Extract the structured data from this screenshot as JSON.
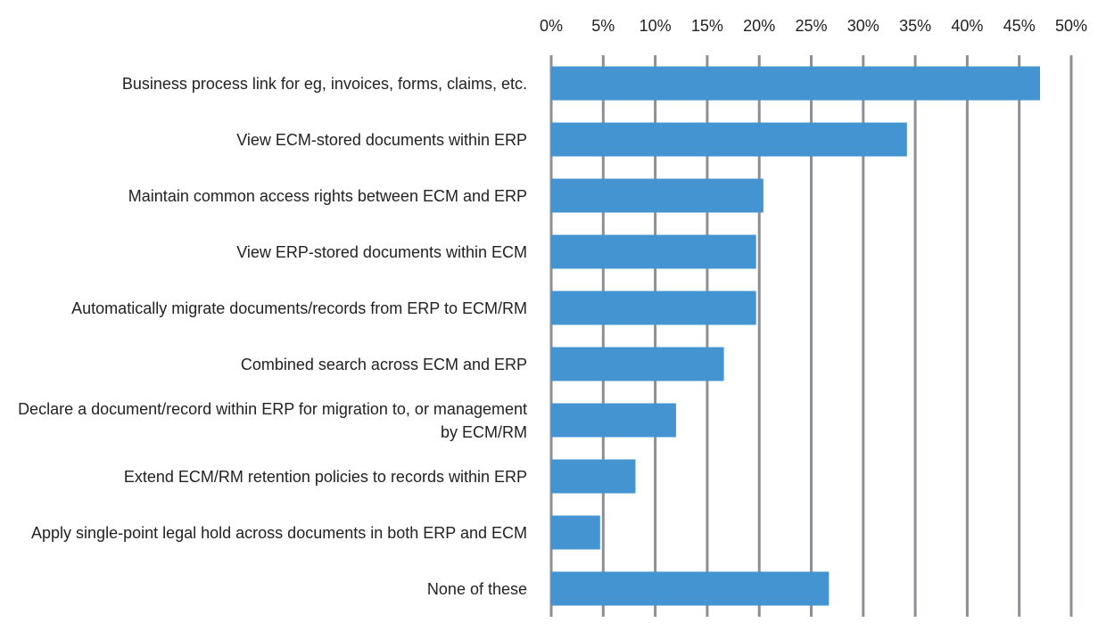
{
  "chart_data": {
    "type": "bar",
    "orientation": "horizontal",
    "categories": [
      "Business process link for eg, invoices, forms, claims, etc.",
      "View ECM-stored documents within ERP",
      "Maintain common access rights between ECM and ERP",
      "View ERP-stored documents within ECM",
      "Automatically migrate documents/records from ERP to ECM/RM",
      "Combined search across ECM and ERP",
      "Declare a document/record within ERP for migration to, or management by ECM/RM",
      "Extend ECM/RM retention policies to records within ERP",
      "Apply single-point legal hold across documents in both ERP and ECM",
      "None of these"
    ],
    "values": [
      47,
      34.2,
      20.4,
      19.7,
      19.7,
      16.6,
      12,
      8.1,
      4.7,
      26.7
    ],
    "color": "#4394d0",
    "xlim": [
      0,
      50
    ],
    "xticks": [
      {
        "value": 0,
        "label": "0%"
      },
      {
        "value": 5,
        "label": "5%"
      },
      {
        "value": 10,
        "label": "10%"
      },
      {
        "value": 15,
        "label": "15%"
      },
      {
        "value": 20,
        "label": "20%"
      },
      {
        "value": 25,
        "label": "25%"
      },
      {
        "value": 30,
        "label": "30%"
      },
      {
        "value": 35,
        "label": "35%"
      },
      {
        "value": 40,
        "label": "40%"
      },
      {
        "value": 45,
        "label": "45%"
      },
      {
        "value": 50,
        "label": "50%"
      }
    ],
    "grid": true
  }
}
